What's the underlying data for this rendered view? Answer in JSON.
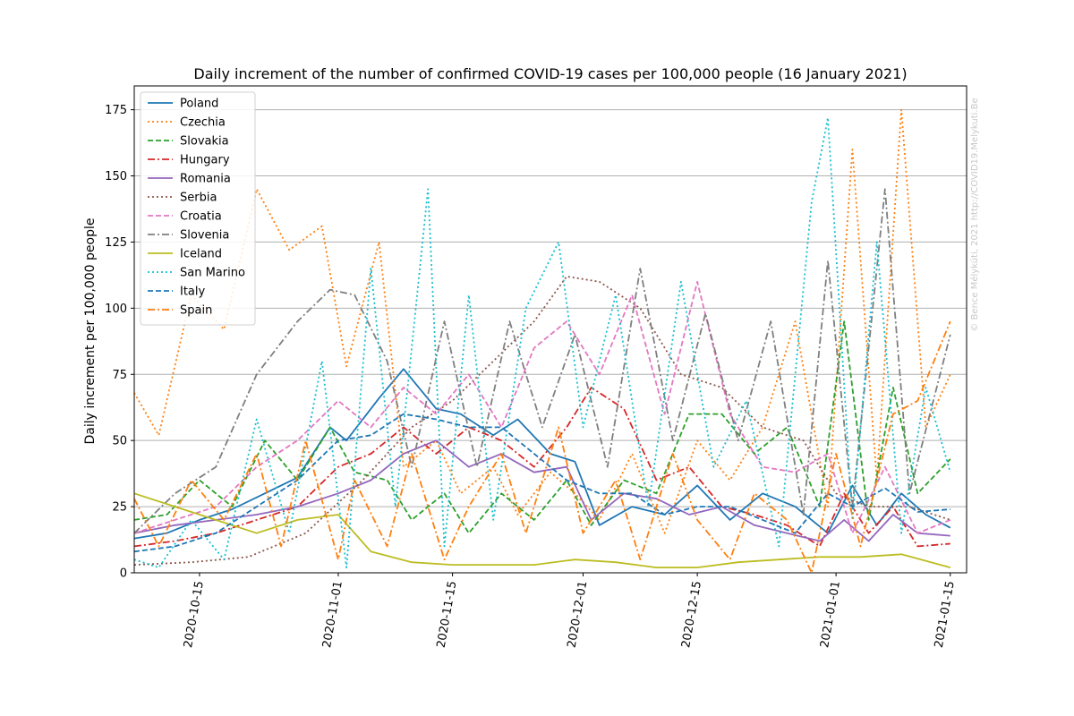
{
  "chart_data": {
    "type": "line",
    "title": "Daily increment of the number of confirmed COVID-19 cases per 100,000 people (16 January 2021)",
    "xlabel": "",
    "ylabel": "Daily increment per 100,000 people",
    "watermark": "© Bence Mélykúti, 2021  http://COVID19.Melykuti.Be",
    "x_range": [
      "2020-10-07",
      "2021-01-17"
    ],
    "ylim": [
      0,
      184
    ],
    "x_ticks": [
      "2020-10-15",
      "2020-11-01",
      "2020-11-15",
      "2020-12-01",
      "2020-12-15",
      "2021-01-01",
      "2021-01-15"
    ],
    "y_ticks": [
      0,
      25,
      50,
      75,
      100,
      125,
      150,
      175
    ],
    "grid": "horizontal",
    "legend_position": "upper-left",
    "colors": {
      "poland": "#1f77b4",
      "czechia": "#ff7f0e",
      "slovakia": "#2ca02c",
      "hungary": "#d62728",
      "romania": "#9467bd",
      "serbia": "#8c564b",
      "croatia": "#e377c2",
      "slovenia": "#7f7f7f",
      "iceland": "#bcbd22",
      "san_marino": "#17becf",
      "italy": "#1f77b4",
      "spain": "#ff7f0e"
    },
    "series": [
      {
        "name": "Poland",
        "color": "#1f77b4",
        "style": "solid",
        "x": [
          "2020-10-07",
          "2020-10-11",
          "2020-10-15",
          "2020-10-19",
          "2020-10-23",
          "2020-10-27",
          "2020-10-31",
          "2020-11-02",
          "2020-11-06",
          "2020-11-09",
          "2020-11-13",
          "2020-11-16",
          "2020-11-20",
          "2020-11-23",
          "2020-11-27",
          "2020-11-30",
          "2020-12-03",
          "2020-12-07",
          "2020-12-11",
          "2020-12-15",
          "2020-12-19",
          "2020-12-23",
          "2020-12-27",
          "2020-12-31",
          "2021-01-03",
          "2021-01-06",
          "2021-01-09",
          "2021-01-12",
          "2021-01-15"
        ],
        "y": [
          13,
          15,
          20,
          24,
          30,
          36,
          55,
          50,
          66,
          77,
          62,
          60,
          52,
          58,
          45,
          42,
          18,
          25,
          22,
          33,
          20,
          30,
          25,
          15,
          33,
          18,
          30,
          22,
          17
        ]
      },
      {
        "name": "Czechia",
        "color": "#ff7f0e",
        "style": "dotted",
        "x": [
          "2020-10-07",
          "2020-10-10",
          "2020-10-14",
          "2020-10-18",
          "2020-10-22",
          "2020-10-26",
          "2020-10-30",
          "2020-11-02",
          "2020-11-06",
          "2020-11-09",
          "2020-11-13",
          "2020-11-16",
          "2020-11-20",
          "2020-11-23",
          "2020-11-27",
          "2020-11-30",
          "2020-12-03",
          "2020-12-07",
          "2020-12-11",
          "2020-12-15",
          "2020-12-19",
          "2020-12-23",
          "2020-12-27",
          "2020-12-31",
          "2021-01-03",
          "2021-01-06",
          "2021-01-09",
          "2021-01-12",
          "2021-01-15"
        ],
        "y": [
          68,
          52,
          105,
          92,
          145,
          122,
          131,
          78,
          125,
          40,
          50,
          30,
          40,
          22,
          38,
          30,
          20,
          45,
          15,
          50,
          35,
          55,
          95,
          25,
          160,
          35,
          175,
          55,
          75
        ]
      },
      {
        "name": "Slovakia",
        "color": "#2ca02c",
        "style": "dashed",
        "x": [
          "2020-10-07",
          "2020-10-11",
          "2020-10-15",
          "2020-10-19",
          "2020-10-23",
          "2020-10-27",
          "2020-10-31",
          "2020-11-03",
          "2020-11-07",
          "2020-11-10",
          "2020-11-14",
          "2020-11-17",
          "2020-11-21",
          "2020-11-25",
          "2020-11-29",
          "2020-12-02",
          "2020-12-06",
          "2020-12-10",
          "2020-12-14",
          "2020-12-18",
          "2020-12-22",
          "2020-12-26",
          "2020-12-30",
          "2021-01-02",
          "2021-01-05",
          "2021-01-08",
          "2021-01-11",
          "2021-01-15"
        ],
        "y": [
          20,
          22,
          35,
          25,
          50,
          35,
          55,
          38,
          35,
          20,
          30,
          15,
          30,
          20,
          35,
          18,
          35,
          30,
          60,
          60,
          45,
          55,
          25,
          95,
          20,
          70,
          30,
          43
        ]
      },
      {
        "name": "Hungary",
        "color": "#d62728",
        "style": "dashdot",
        "x": [
          "2020-10-07",
          "2020-10-12",
          "2020-10-17",
          "2020-10-22",
          "2020-10-27",
          "2020-11-01",
          "2020-11-05",
          "2020-11-09",
          "2020-11-13",
          "2020-11-17",
          "2020-11-21",
          "2020-11-25",
          "2020-11-29",
          "2020-12-02",
          "2020-12-06",
          "2020-12-10",
          "2020-12-14",
          "2020-12-18",
          "2020-12-22",
          "2020-12-26",
          "2020-12-30",
          "2021-01-02",
          "2021-01-05",
          "2021-01-08",
          "2021-01-11",
          "2021-01-15"
        ],
        "y": [
          10,
          12,
          15,
          20,
          25,
          40,
          45,
          55,
          45,
          55,
          50,
          40,
          55,
          70,
          62,
          35,
          40,
          25,
          22,
          18,
          10,
          30,
          15,
          25,
          10,
          11
        ]
      },
      {
        "name": "Romania",
        "color": "#9467bd",
        "style": "solid",
        "x": [
          "2020-10-07",
          "2020-10-12",
          "2020-10-17",
          "2020-10-22",
          "2020-10-27",
          "2020-11-01",
          "2020-11-05",
          "2020-11-09",
          "2020-11-13",
          "2020-11-17",
          "2020-11-21",
          "2020-11-25",
          "2020-11-29",
          "2020-12-02",
          "2020-12-06",
          "2020-12-10",
          "2020-12-14",
          "2020-12-18",
          "2020-12-22",
          "2020-12-26",
          "2020-12-30",
          "2021-01-02",
          "2021-01-05",
          "2021-01-08",
          "2021-01-11",
          "2021-01-15"
        ],
        "y": [
          15,
          18,
          20,
          22,
          25,
          30,
          35,
          45,
          50,
          40,
          45,
          38,
          40,
          20,
          30,
          28,
          22,
          25,
          18,
          15,
          12,
          20,
          12,
          22,
          15,
          14
        ]
      },
      {
        "name": "Serbia",
        "color": "#8c564b",
        "style": "dotted",
        "x": [
          "2020-10-07",
          "2020-10-14",
          "2020-10-21",
          "2020-10-28",
          "2020-11-04",
          "2020-11-10",
          "2020-11-15",
          "2020-11-20",
          "2020-11-25",
          "2020-11-29",
          "2020-12-03",
          "2020-12-08",
          "2020-12-13",
          "2020-12-18",
          "2020-12-23",
          "2020-12-28",
          "2021-01-01",
          "2021-01-05",
          "2021-01-10",
          "2021-01-15"
        ],
        "y": [
          3,
          4,
          6,
          15,
          35,
          55,
          65,
          80,
          95,
          112,
          110,
          100,
          75,
          70,
          55,
          50,
          30,
          25,
          25,
          20
        ]
      },
      {
        "name": "Croatia",
        "color": "#e377c2",
        "style": "dashed",
        "x": [
          "2020-10-07",
          "2020-10-12",
          "2020-10-17",
          "2020-10-22",
          "2020-10-27",
          "2020-11-01",
          "2020-11-05",
          "2020-11-09",
          "2020-11-13",
          "2020-11-17",
          "2020-11-21",
          "2020-11-25",
          "2020-11-29",
          "2020-12-03",
          "2020-12-07",
          "2020-12-11",
          "2020-12-15",
          "2020-12-19",
          "2020-12-23",
          "2020-12-27",
          "2020-12-31",
          "2021-01-03",
          "2021-01-07",
          "2021-01-11",
          "2021-01-15"
        ],
        "y": [
          15,
          20,
          25,
          40,
          50,
          65,
          55,
          70,
          60,
          75,
          55,
          85,
          95,
          75,
          105,
          60,
          110,
          60,
          40,
          38,
          45,
          15,
          40,
          15,
          20
        ]
      },
      {
        "name": "Slovenia",
        "color": "#7f7f7f",
        "style": "dashdot",
        "x": [
          "2020-10-07",
          "2020-10-12",
          "2020-10-17",
          "2020-10-22",
          "2020-10-27",
          "2020-10-31",
          "2020-11-03",
          "2020-11-07",
          "2020-11-10",
          "2020-11-14",
          "2020-11-18",
          "2020-11-22",
          "2020-11-26",
          "2020-11-30",
          "2020-12-04",
          "2020-12-08",
          "2020-12-12",
          "2020-12-16",
          "2020-12-20",
          "2020-12-24",
          "2020-12-28",
          "2020-12-31",
          "2021-01-03",
          "2021-01-07",
          "2021-01-10",
          "2021-01-15"
        ],
        "y": [
          15,
          30,
          40,
          75,
          95,
          107,
          105,
          80,
          40,
          95,
          40,
          95,
          55,
          90,
          40,
          115,
          50,
          98,
          50,
          95,
          22,
          118,
          25,
          145,
          30,
          90
        ]
      },
      {
        "name": "Iceland",
        "color": "#bcbd22",
        "style": "solid",
        "x": [
          "2020-10-07",
          "2020-10-12",
          "2020-10-17",
          "2020-10-22",
          "2020-10-27",
          "2020-11-01",
          "2020-11-05",
          "2020-11-10",
          "2020-11-15",
          "2020-11-20",
          "2020-11-25",
          "2020-11-30",
          "2020-12-05",
          "2020-12-10",
          "2020-12-15",
          "2020-12-20",
          "2020-12-25",
          "2020-12-30",
          "2021-01-04",
          "2021-01-09",
          "2021-01-15"
        ],
        "y": [
          30,
          25,
          20,
          15,
          20,
          22,
          8,
          4,
          3,
          3,
          3,
          5,
          4,
          2,
          2,
          4,
          5,
          6,
          6,
          7,
          2
        ]
      },
      {
        "name": "San Marino",
        "color": "#17becf",
        "style": "dotted",
        "x": [
          "2020-10-07",
          "2020-10-10",
          "2020-10-14",
          "2020-10-18",
          "2020-10-22",
          "2020-10-26",
          "2020-10-30",
          "2020-11-02",
          "2020-11-05",
          "2020-11-08",
          "2020-11-12",
          "2020-11-14",
          "2020-11-17",
          "2020-11-20",
          "2020-11-24",
          "2020-11-28",
          "2020-12-01",
          "2020-12-05",
          "2020-12-09",
          "2020-12-13",
          "2020-12-17",
          "2020-12-21",
          "2020-12-25",
          "2020-12-29",
          "2020-12-31",
          "2021-01-03",
          "2021-01-06",
          "2021-01-09",
          "2021-01-12",
          "2021-01-15"
        ],
        "y": [
          5,
          2,
          20,
          5,
          58,
          15,
          80,
          2,
          115,
          25,
          145,
          10,
          105,
          20,
          100,
          125,
          55,
          105,
          25,
          110,
          40,
          65,
          10,
          140,
          172,
          20,
          125,
          15,
          70,
          38
        ]
      },
      {
        "name": "Italy",
        "color": "#1f77b4",
        "style": "dashed",
        "x": [
          "2020-10-07",
          "2020-10-12",
          "2020-10-17",
          "2020-10-22",
          "2020-10-27",
          "2020-11-01",
          "2020-11-05",
          "2020-11-09",
          "2020-11-13",
          "2020-11-17",
          "2020-11-21",
          "2020-11-25",
          "2020-11-29",
          "2020-12-03",
          "2020-12-07",
          "2020-12-11",
          "2020-12-15",
          "2020-12-19",
          "2020-12-23",
          "2020-12-27",
          "2020-12-31",
          "2021-01-03",
          "2021-01-07",
          "2021-01-11",
          "2021-01-15"
        ],
        "y": [
          8,
          10,
          15,
          25,
          35,
          50,
          52,
          60,
          58,
          55,
          55,
          45,
          35,
          30,
          30,
          22,
          25,
          25,
          20,
          15,
          30,
          25,
          32,
          23,
          24
        ]
      },
      {
        "name": "Spain",
        "color": "#ff7f0e",
        "style": "dashdot",
        "x": [
          "2020-10-07",
          "2020-10-10",
          "2020-10-14",
          "2020-10-18",
          "2020-10-22",
          "2020-10-25",
          "2020-10-28",
          "2020-11-01",
          "2020-11-03",
          "2020-11-07",
          "2020-11-10",
          "2020-11-14",
          "2020-11-17",
          "2020-11-21",
          "2020-11-24",
          "2020-11-28",
          "2020-12-01",
          "2020-12-05",
          "2020-12-08",
          "2020-12-12",
          "2020-12-15",
          "2020-12-19",
          "2020-12-22",
          "2020-12-26",
          "2020-12-29",
          "2021-01-01",
          "2021-01-04",
          "2021-01-08",
          "2021-01-11",
          "2021-01-15"
        ],
        "y": [
          28,
          10,
          35,
          20,
          45,
          10,
          50,
          5,
          35,
          10,
          45,
          5,
          25,
          45,
          15,
          55,
          15,
          35,
          5,
          45,
          20,
          5,
          30,
          20,
          0,
          45,
          10,
          60,
          65,
          95
        ]
      }
    ]
  }
}
